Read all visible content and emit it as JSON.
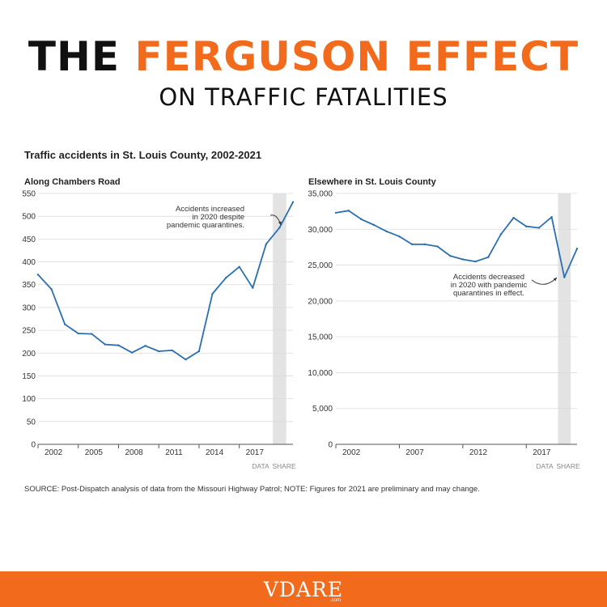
{
  "headline": {
    "line1_dark": "THE",
    "line1_accent": "FERGUSON EFFECT",
    "line2": "ON TRAFFIC FATALITIES"
  },
  "chart_heading": "Traffic accidents in St. Louis County, 2002-2021",
  "chart_data": [
    {
      "type": "line",
      "title": "Along Chambers Road",
      "x": [
        2002,
        2003,
        2004,
        2005,
        2006,
        2007,
        2008,
        2009,
        2010,
        2011,
        2012,
        2013,
        2014,
        2015,
        2016,
        2017,
        2018,
        2019,
        2020,
        2021
      ],
      "series": [
        {
          "values": [
            372,
            340,
            263,
            243,
            242,
            219,
            217,
            201,
            216,
            204,
            206,
            186,
            204,
            330,
            365,
            389,
            343,
            439,
            475,
            531
          ]
        }
      ],
      "xticks": [
        "2002",
        "2005",
        "2008",
        "2011",
        "2014",
        "2017"
      ],
      "yticks": [
        "0",
        "50",
        "100",
        "150",
        "200",
        "250",
        "300",
        "350",
        "400",
        "450",
        "500",
        "550"
      ],
      "ylim": [
        0,
        550
      ],
      "highlight_year": 2020,
      "annotation": [
        "Accidents increased",
        "in 2020 despite",
        "pandemic quarantines."
      ],
      "links": [
        "DATA",
        "SHARE"
      ]
    },
    {
      "type": "line",
      "title": "Elsewhere in St. Louis County",
      "x": [
        2002,
        2003,
        2004,
        2005,
        2006,
        2007,
        2008,
        2009,
        2010,
        2011,
        2012,
        2013,
        2014,
        2015,
        2016,
        2017,
        2018,
        2019,
        2020,
        2021
      ],
      "series": [
        {
          "values": [
            32300,
            32600,
            31400,
            30600,
            29700,
            29000,
            27900,
            27900,
            27600,
            26300,
            25800,
            25500,
            26100,
            29300,
            31600,
            30400,
            30200,
            31700,
            23300,
            27300
          ]
        }
      ],
      "xticks": [
        "2002",
        "2007",
        "2012",
        "2017"
      ],
      "yticks": [
        "0",
        "5,000",
        "10,000",
        "15,000",
        "20,000",
        "25,000",
        "30,000",
        "35,000"
      ],
      "ylim": [
        0,
        35000
      ],
      "highlight_year": 2020,
      "annotation": [
        "Accidents decreased",
        "in 2020 with pandemic",
        "quarantines in effect."
      ],
      "links": [
        "DATA",
        "SHARE"
      ]
    }
  ],
  "source_note": "SOURCE: Post-Dispatch analysis of data from the Missouri Highway Patrol; NOTE: Figures for 2021 are preliminary and may change.",
  "footer": {
    "logo": "VDARE",
    "logo_sub": ".com"
  },
  "colors": {
    "accent": "#f26b1d",
    "line": "#2a6fb0",
    "highlight": "#e3e3e3"
  }
}
